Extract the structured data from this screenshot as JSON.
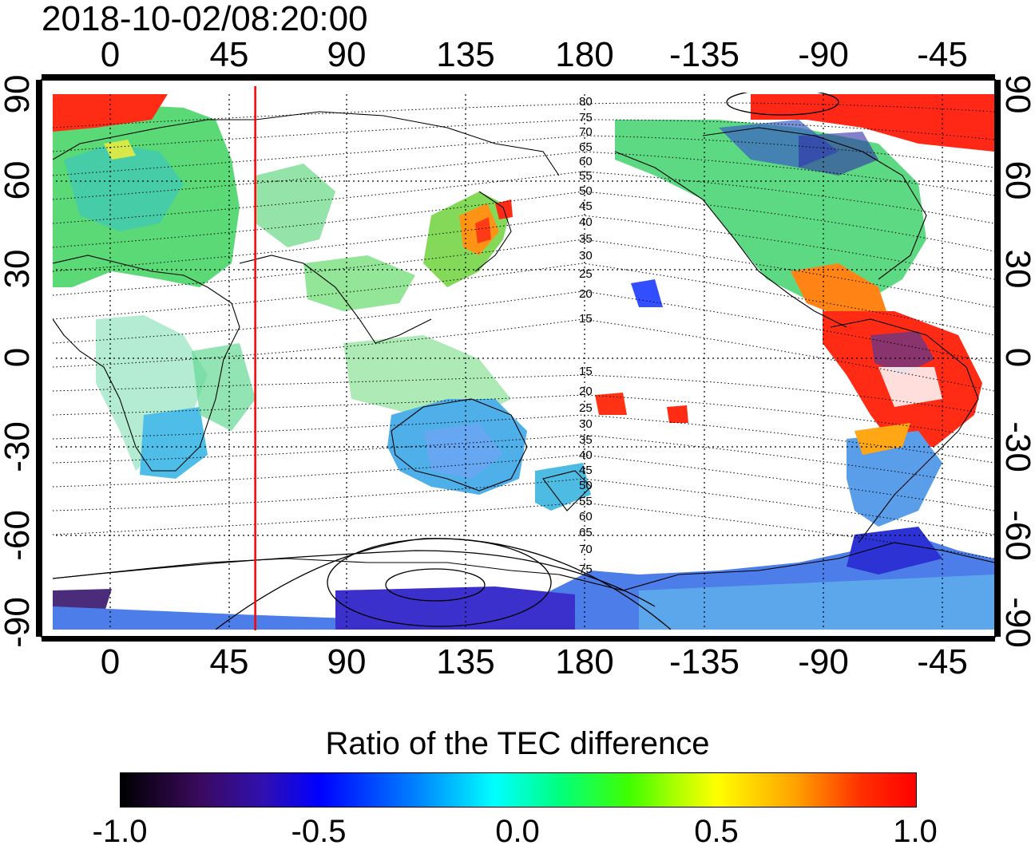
{
  "timestamp": "2018-10-02/08:20:00",
  "x_ticks": [
    "0",
    "45",
    "90",
    "135",
    "180",
    "-135",
    "-90",
    "-45"
  ],
  "y_ticks": [
    "90",
    "60",
    "30",
    "0",
    "-30",
    "-60",
    "-90"
  ],
  "mag_lat_labels_north": [
    "80",
    "75",
    "70",
    "65",
    "60",
    "55",
    "50",
    "45",
    "40",
    "35",
    "30",
    "25",
    "20",
    "15"
  ],
  "mag_lat_labels_south": [
    "15",
    "20",
    "25",
    "30",
    "35",
    "40",
    "45",
    "50",
    "55",
    "60",
    "65",
    "70",
    "75"
  ],
  "terminator_longitude": 55,
  "colorbar": {
    "title": "Ratio of the TEC difference",
    "ticks": [
      "-1.0",
      "-0.5",
      "0.0",
      "0.5",
      "1.0"
    ],
    "range": [
      -1.0,
      1.0
    ]
  },
  "colors": {
    "terminator": "#ff0000",
    "strong_positive": "#ff0000",
    "neutral": "#40ff40",
    "negative": "#3060ff"
  }
}
